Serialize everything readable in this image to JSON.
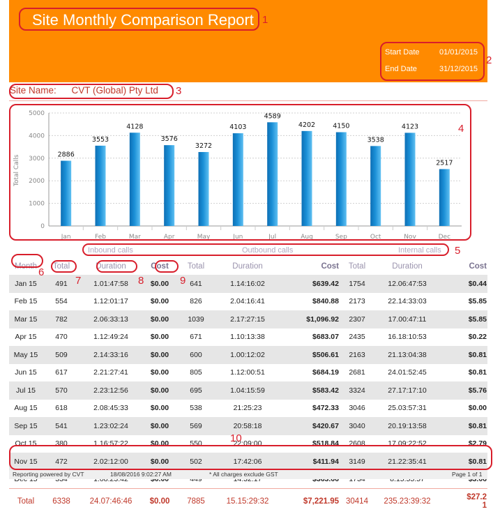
{
  "report": {
    "title": "Site Monthly Comparison Report",
    "start_date_label": "Start Date",
    "start_date": "01/01/2015",
    "end_date_label": "End Date",
    "end_date": "31/12/2015",
    "site_name_label": "Site Name:",
    "site_name": "CVT (Global) Pty Ltd",
    "header_color": "#ff8a00",
    "accent_color": "#c0392b",
    "annotation_color": "#d81e2b"
  },
  "annotations": [
    "1",
    "2",
    "3",
    "4",
    "5",
    "6",
    "7",
    "8",
    "9",
    "10"
  ],
  "chart_data": {
    "type": "bar",
    "categories": [
      "Jan",
      "Feb",
      "Mar",
      "Apr",
      "May",
      "Jun",
      "Jul",
      "Aug",
      "Sep",
      "Oct",
      "Nov",
      "Dec"
    ],
    "values": [
      2886,
      3553,
      4128,
      3576,
      3272,
      4103,
      4589,
      4202,
      4150,
      3538,
      4123,
      2517
    ],
    "xlabel": "",
    "ylabel": "Total Calls",
    "ylim": [
      0,
      5000
    ],
    "yticks": [
      0,
      1000,
      2000,
      3000,
      4000,
      5000
    ],
    "grid": true,
    "bar_color": "#1a8fd6"
  },
  "sections": {
    "inbound": "Inbound calls",
    "outbound": "Outbound calls",
    "internal": "Internal calls"
  },
  "table": {
    "headers": [
      "Month",
      "Total",
      "Duration",
      "Cost",
      "Total",
      "Duration",
      "Cost",
      "Total",
      "Duration",
      "Cost"
    ],
    "rows": [
      [
        "Jan 15",
        "491",
        "1.01:47:58",
        "$0.00",
        "641",
        "1.14:16:02",
        "$639.42",
        "1754",
        "12.06:47:53",
        "$0.44"
      ],
      [
        "Feb 15",
        "554",
        "1.12:01:17",
        "$0.00",
        "826",
        "2.04:16:41",
        "$840.88",
        "2173",
        "22.14:33:03",
        "$5.85"
      ],
      [
        "Mar 15",
        "782",
        "2.06:33:13",
        "$0.00",
        "1039",
        "2.17:27:15",
        "$1,096.92",
        "2307",
        "17.00:47:11",
        "$5.85"
      ],
      [
        "Apr 15",
        "470",
        "1.12:49:24",
        "$0.00",
        "671",
        "1.10:13:38",
        "$683.07",
        "2435",
        "16.18:10:53",
        "$0.22"
      ],
      [
        "May 15",
        "509",
        "2.14:33:16",
        "$0.00",
        "600",
        "1.00:12:02",
        "$506.61",
        "2163",
        "21.13:04:38",
        "$0.81"
      ],
      [
        "Jun 15",
        "617",
        "2.21:27:41",
        "$0.00",
        "805",
        "1.12:00:51",
        "$684.19",
        "2681",
        "24.01:52:45",
        "$0.81"
      ],
      [
        "Jul 15",
        "570",
        "2.23:12:56",
        "$0.00",
        "695",
        "1.04:15:59",
        "$583.42",
        "3324",
        "27.17:17:10",
        "$5.76"
      ],
      [
        "Aug 15",
        "618",
        "2.08:45:33",
        "$0.00",
        "538",
        "21:25:23",
        "$472.33",
        "3046",
        "25.03:57:31",
        "$0.00"
      ],
      [
        "Sep 15",
        "541",
        "1.23:02:24",
        "$0.00",
        "569",
        "20:58:18",
        "$420.67",
        "3040",
        "20.19:13:58",
        "$0.81"
      ],
      [
        "Oct 15",
        "380",
        "1.16:57:22",
        "$0.00",
        "550",
        "22:09:00",
        "$518.84",
        "2608",
        "17.09:22:52",
        "$2.79"
      ],
      [
        "Nov 15",
        "472",
        "2.02:12:00",
        "$0.00",
        "502",
        "17:42:06",
        "$411.94",
        "3149",
        "21.22:35:41",
        "$0.81"
      ],
      [
        "Dec 15",
        "334",
        "1.08:23:42",
        "$0.00",
        "449",
        "14:32:17",
        "$363.66",
        "1734",
        "8.15:55:57",
        "$3.06"
      ]
    ],
    "totals": [
      "Total",
      "6338",
      "24.07:46:46",
      "$0.00",
      "7885",
      "15.15:29:32",
      "$7,221.95",
      "30414",
      "235.23:39:32",
      "$27.2\n1"
    ]
  },
  "footer": {
    "powered_by": "Reporting powered by CVT",
    "printed": "18/08/2016 9:02:27 AM",
    "note": "* All charges exclude GST",
    "page": "Page 1 of 1"
  }
}
